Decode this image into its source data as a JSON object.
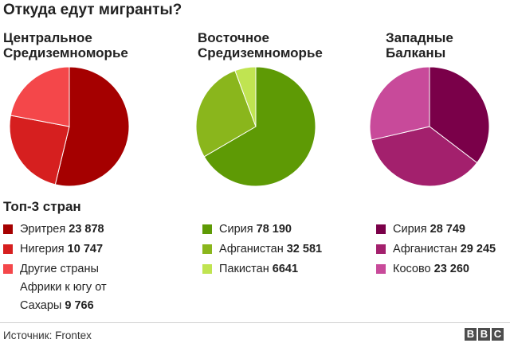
{
  "title": "Откуда едут мигранты?",
  "top3_label": "Топ-3 стран",
  "source": "Источник: Frontex",
  "logo_letters": [
    "B",
    "B",
    "C"
  ],
  "chart_data": [
    {
      "type": "pie",
      "title": "Центральное\nСредиземноморье",
      "categories": [
        "Эритрея",
        "Нигерия",
        "Другие страны Африки к югу от Сахары"
      ],
      "values": [
        23878,
        10747,
        9766
      ],
      "value_labels": [
        "23 878",
        "10 747",
        "9 766"
      ],
      "colors": [
        "#a50000",
        "#d61f1f",
        "#f4474a"
      ]
    },
    {
      "type": "pie",
      "title": "Восточное\nСредиземноморье",
      "categories": [
        "Сирия",
        "Афганистан",
        "Пакистан"
      ],
      "values": [
        78190,
        32581,
        6641
      ],
      "value_labels": [
        "78 190",
        "32 581",
        "6641"
      ],
      "colors": [
        "#5e9a05",
        "#8ab61c",
        "#c0e451"
      ]
    },
    {
      "type": "pie",
      "title": "Западные\nБалканы",
      "categories": [
        "Сирия",
        "Афганистан",
        "Косово"
      ],
      "values": [
        28749,
        29245,
        23260
      ],
      "value_labels": [
        "28 749",
        "29 245",
        "23 260"
      ],
      "colors": [
        "#7a0049",
        "#a3206d",
        "#c84a9a"
      ]
    }
  ]
}
